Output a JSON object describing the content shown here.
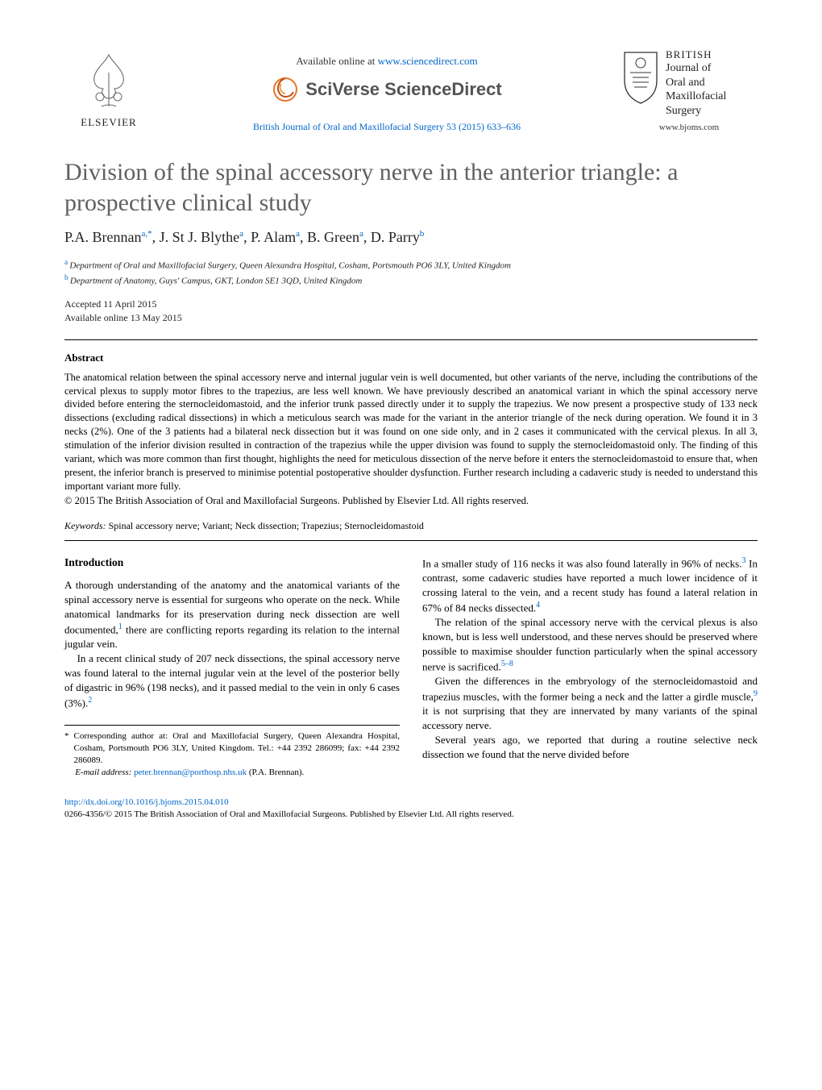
{
  "header": {
    "elsevier_label": "ELSEVIER",
    "available_online_prefix": "Available online at ",
    "available_online_url": "www.sciencedirect.com",
    "sciverse_label": "SciVerse ScienceDirect",
    "journal_ref": "British Journal of Oral and Maxillofacial Surgery 53 (2015) 633–636",
    "bjoms_title_line1": "BRITISH",
    "bjoms_title_line2": "Journal of",
    "bjoms_title_line3": "Oral and",
    "bjoms_title_line4": "Maxillofacial",
    "bjoms_title_line5": "Surgery",
    "bjoms_url": "www.bjoms.com"
  },
  "article": {
    "title": "Division of the spinal accessory nerve in the anterior triangle: a prospective clinical study",
    "authors_html": "P.A. Brennan",
    "authors": [
      {
        "name": "P.A. Brennan",
        "sup": "a,*"
      },
      {
        "name": "J. St J. Blythe",
        "sup": "a"
      },
      {
        "name": "P. Alam",
        "sup": "a"
      },
      {
        "name": "B. Green",
        "sup": "a"
      },
      {
        "name": "D. Parry",
        "sup": "b"
      }
    ],
    "affiliations": [
      {
        "sup": "a",
        "text": "Department of Oral and Maxillofacial Surgery, Queen Alexandra Hospital, Cosham, Portsmouth PO6 3LY, United Kingdom"
      },
      {
        "sup": "b",
        "text": "Department of Anatomy, Guys' Campus, GKT, London SE1 3QD, United Kingdom"
      }
    ],
    "accepted": "Accepted 11 April 2015",
    "available_online": "Available online 13 May 2015"
  },
  "abstract": {
    "heading": "Abstract",
    "text": "The anatomical relation between the spinal accessory nerve and internal jugular vein is well documented, but other variants of the nerve, including the contributions of the cervical plexus to supply motor fibres to the trapezius, are less well known. We have previously described an anatomical variant in which the spinal accessory nerve divided before entering the sternocleidomastoid, and the inferior trunk passed directly under it to supply the trapezius. We now present a prospective study of 133 neck dissections (excluding radical dissections) in which a meticulous search was made for the variant in the anterior triangle of the neck during operation. We found it in 3 necks (2%). One of the 3 patients had a bilateral neck dissection but it was found on one side only, and in 2 cases it communicated with the cervical plexus. In all 3, stimulation of the inferior division resulted in contraction of the trapezius while the upper division was found to supply the sternocleidomastoid only. The finding of this variant, which was more common than first thought, highlights the need for meticulous dissection of the nerve before it enters the sternocleidomastoid to ensure that, when present, the inferior branch is preserved to minimise potential postoperative shoulder dysfunction. Further research including a cadaveric study is needed to understand this important variant more fully.",
    "copyright": "© 2015 The British Association of Oral and Maxillofacial Surgeons. Published by Elsevier Ltd. All rights reserved."
  },
  "keywords": {
    "label": "Keywords:",
    "text": "Spinal accessory nerve; Variant; Neck dissection; Trapezius; Sternocleidomastoid"
  },
  "body": {
    "intro_heading": "Introduction",
    "p1": "A thorough understanding of the anatomy and the anatomical variants of the spinal accessory nerve is essential for surgeons who operate on the neck. While anatomical landmarks for its preservation during neck dissection are well documented,",
    "p1_ref": "1",
    "p1_tail": " there are conflicting reports regarding its relation to the internal jugular vein.",
    "p2": "In a recent clinical study of 207 neck dissections, the spinal accessory nerve was found lateral to the internal jugular vein at the level of the posterior belly of digastric in 96% (198 necks), and it passed medial to the vein in only 6 cases (3%).",
    "p2_ref": "2",
    "p3": "In a smaller study of 116 necks it was also found laterally in 96% of necks.",
    "p3_ref": "3",
    "p3_tail": " In contrast, some cadaveric studies have reported a much lower incidence of it crossing lateral to the vein, and a recent study has found a lateral relation in 67% of 84 necks dissected.",
    "p3_ref2": "4",
    "p4": "The relation of the spinal accessory nerve with the cervical plexus is also known, but is less well understood, and these nerves should be preserved where possible to maximise shoulder function particularly when the spinal accessory nerve is sacrificed.",
    "p4_ref": "5–8",
    "p5": "Given the differences in the embryology of the sternocleidomastoid and trapezius muscles, with the former being a neck and the latter a girdle muscle,",
    "p5_ref": "9",
    "p5_tail": " it is not surprising that they are innervated by many variants of the spinal accessory nerve.",
    "p6": "Several years ago, we reported that during a routine selective neck dissection we found that the nerve divided before"
  },
  "footnotes": {
    "corresponding": "Corresponding author at: Oral and Maxillofacial Surgery, Queen Alexandra Hospital, Cosham, Portsmouth PO6 3LY, United Kingdom. Tel.: +44 2392 286099; fax: +44 2392 286089.",
    "email_label": "E-mail address:",
    "email": "peter.brennan@porthosp.nhs.uk",
    "email_attribution": " (P.A. Brennan)."
  },
  "footer": {
    "doi": "http://dx.doi.org/10.1016/j.bjoms.2015.04.010",
    "issn_line": "0266-4356/© 2015 The British Association of Oral and Maxillofacial Surgeons. Published by Elsevier Ltd. All rights reserved."
  },
  "colors": {
    "title_gray": "#606060",
    "link_blue": "#0066cc",
    "text": "#000000",
    "sciverse_gray": "#545454",
    "elsevier_orange": "#e8762d"
  }
}
